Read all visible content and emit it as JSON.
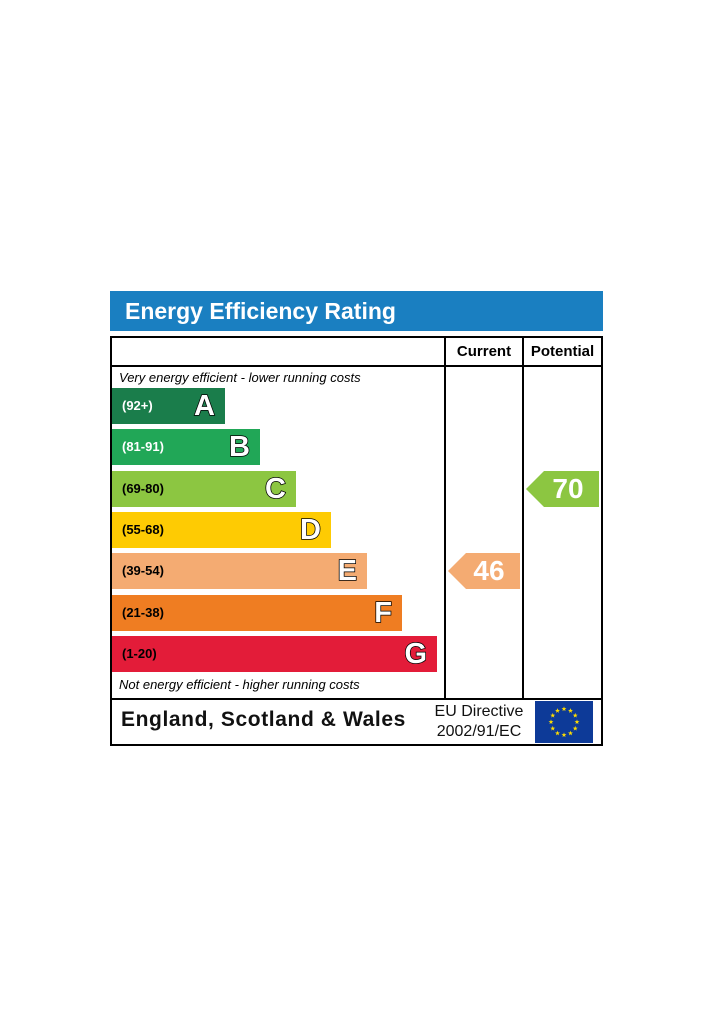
{
  "title": "Energy Efficiency Rating",
  "columns": {
    "current": "Current",
    "potential": "Potential"
  },
  "notes": {
    "top": "Very energy efficient - lower running costs",
    "bottom": "Not energy efficient - higher running costs"
  },
  "footer": {
    "region": "England, Scotland & Wales",
    "directive_line1": "EU Directive",
    "directive_line2": "2002/91/EC"
  },
  "chart_data": {
    "type": "bar",
    "categories": [
      "A",
      "B",
      "C",
      "D",
      "E",
      "F",
      "G"
    ],
    "bands": [
      {
        "letter": "A",
        "range": "(92+)",
        "color": "#1a7d4b",
        "range_color": "#ffffff"
      },
      {
        "letter": "B",
        "range": "(81-91)",
        "color": "#21a757",
        "range_color": "#ffffff"
      },
      {
        "letter": "C",
        "range": "(69-80)",
        "color": "#8cc641",
        "range_color": "#000000"
      },
      {
        "letter": "D",
        "range": "(55-68)",
        "color": "#fecb03",
        "range_color": "#000000"
      },
      {
        "letter": "E",
        "range": "(39-54)",
        "color": "#f4ab72",
        "range_color": "#000000"
      },
      {
        "letter": "F",
        "range": "(21-38)",
        "color": "#ef7d22",
        "range_color": "#000000"
      },
      {
        "letter": "G",
        "range": "(1-20)",
        "color": "#e31c39",
        "range_color": "#000000"
      }
    ],
    "current": {
      "value": 46,
      "band": "E",
      "color": "#f4ab72"
    },
    "potential": {
      "value": 70,
      "band": "C",
      "color": "#8cc641"
    }
  },
  "eu_flag": {
    "icon": "eu-flag-icon",
    "background": "#0d3a98",
    "stars": "#ffdd00"
  }
}
